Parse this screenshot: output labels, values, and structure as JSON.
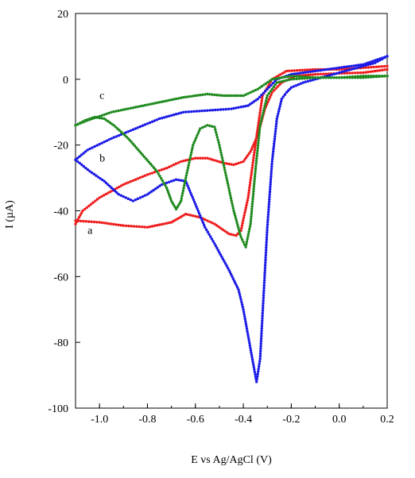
{
  "chart_data": {
    "type": "line",
    "xlabel": "E vs Ag/AgCl (V)",
    "ylabel": "I (µA)",
    "xlim": [
      -1.1,
      0.2
    ],
    "ylim": [
      -100,
      20
    ],
    "xticks": [
      -1.0,
      -0.8,
      -0.6,
      -0.4,
      -0.2,
      0.0,
      0.2
    ],
    "xtick_labels": [
      "-1.0",
      "-0.8",
      "-0.6",
      "-0.4",
      "-0.2",
      "0.0",
      "0.2"
    ],
    "yticks": [
      20,
      0,
      -20,
      -40,
      -60,
      -80,
      -100
    ],
    "ytick_labels": [
      "20",
      "0",
      "-20",
      "-40",
      "-60",
      "-80",
      "-100"
    ],
    "grid": false,
    "series": [
      {
        "name": "a",
        "color": "#ee1c1c",
        "label_at": [
          -1.05,
          -47
        ],
        "loops": [
          [
            [
              -1.1,
              -43
            ],
            [
              -1.0,
              -43.5
            ],
            [
              -0.9,
              -44.5
            ],
            [
              -0.8,
              -45
            ],
            [
              -0.7,
              -43.5
            ],
            [
              -0.64,
              -41
            ],
            [
              -0.58,
              -42
            ],
            [
              -0.52,
              -44
            ],
            [
              -0.46,
              -47
            ],
            [
              -0.43,
              -47.5
            ],
            [
              -0.41,
              -46
            ],
            [
              -0.38,
              -36
            ],
            [
              -0.35,
              -20
            ],
            [
              -0.32,
              -5
            ],
            [
              -0.28,
              0
            ],
            [
              -0.22,
              2.5
            ],
            [
              -0.1,
              3
            ],
            [
              0.0,
              3
            ],
            [
              0.1,
              3.5
            ],
            [
              0.2,
              4
            ]
          ],
          [
            [
              0.2,
              3
            ],
            [
              0.1,
              2
            ],
            [
              0.0,
              1.8
            ],
            [
              -0.1,
              1.5
            ],
            [
              -0.18,
              1
            ],
            [
              -0.24,
              -1
            ],
            [
              -0.28,
              -4
            ],
            [
              -0.31,
              -9
            ],
            [
              -0.34,
              -17
            ],
            [
              -0.37,
              -22
            ],
            [
              -0.4,
              -25
            ],
            [
              -0.44,
              -26
            ],
            [
              -0.48,
              -25.5
            ],
            [
              -0.55,
              -24
            ],
            [
              -0.6,
              -24
            ],
            [
              -0.66,
              -25
            ],
            [
              -0.72,
              -27
            ],
            [
              -0.8,
              -29
            ],
            [
              -0.9,
              -32
            ],
            [
              -1.0,
              -36
            ],
            [
              -1.07,
              -40
            ],
            [
              -1.1,
              -44
            ]
          ]
        ]
      },
      {
        "name": "b",
        "color": "#1a1ae6",
        "label_at": [
          -1.0,
          -25
        ],
        "loops": [
          [
            [
              -1.1,
              -24.5
            ],
            [
              -1.04,
              -28
            ],
            [
              -0.98,
              -31
            ],
            [
              -0.92,
              -35
            ],
            [
              -0.86,
              -37
            ],
            [
              -0.8,
              -35
            ],
            [
              -0.74,
              -32
            ],
            [
              -0.68,
              -30.5
            ],
            [
              -0.64,
              -31
            ],
            [
              -0.6,
              -38
            ],
            [
              -0.56,
              -45
            ],
            [
              -0.52,
              -50
            ],
            [
              -0.46,
              -58
            ],
            [
              -0.42,
              -64
            ],
            [
              -0.4,
              -70
            ],
            [
              -0.38,
              -78
            ],
            [
              -0.36,
              -86
            ],
            [
              -0.345,
              -92
            ],
            [
              -0.33,
              -85
            ],
            [
              -0.315,
              -65
            ],
            [
              -0.3,
              -45
            ],
            [
              -0.28,
              -25
            ],
            [
              -0.26,
              -12
            ],
            [
              -0.24,
              -6
            ],
            [
              -0.22,
              -4
            ],
            [
              -0.2,
              -2.5
            ],
            [
              -0.15,
              -1
            ],
            [
              -0.05,
              1
            ],
            [
              0.05,
              3
            ],
            [
              0.15,
              5
            ],
            [
              0.2,
              7
            ]
          ],
          [
            [
              0.2,
              7
            ],
            [
              0.1,
              4.5
            ],
            [
              0.0,
              3.5
            ],
            [
              -0.1,
              2.5
            ],
            [
              -0.2,
              1.5
            ],
            [
              -0.26,
              0
            ],
            [
              -0.3,
              -3
            ],
            [
              -0.34,
              -6
            ],
            [
              -0.38,
              -8
            ],
            [
              -0.45,
              -9
            ],
            [
              -0.55,
              -9.5
            ],
            [
              -0.65,
              -10
            ],
            [
              -0.75,
              -12
            ],
            [
              -0.85,
              -15
            ],
            [
              -0.95,
              -18
            ],
            [
              -1.05,
              -21.5
            ],
            [
              -1.1,
              -24.5
            ]
          ]
        ]
      },
      {
        "name": "c",
        "color": "#1f8a1f",
        "label_at": [
          -1.0,
          -6
        ],
        "loops": [
          [
            [
              -1.1,
              -14
            ],
            [
              -1.06,
              -12.5
            ],
            [
              -1.02,
              -11.5
            ],
            [
              -0.98,
              -12
            ],
            [
              -0.94,
              -14
            ],
            [
              -0.88,
              -18
            ],
            [
              -0.82,
              -23
            ],
            [
              -0.76,
              -28
            ],
            [
              -0.72,
              -33
            ],
            [
              -0.7,
              -37
            ],
            [
              -0.68,
              -39.5
            ],
            [
              -0.66,
              -37
            ],
            [
              -0.64,
              -30
            ],
            [
              -0.61,
              -20
            ],
            [
              -0.58,
              -15
            ],
            [
              -0.55,
              -14
            ],
            [
              -0.52,
              -14.5
            ],
            [
              -0.5,
              -20
            ],
            [
              -0.47,
              -30
            ],
            [
              -0.44,
              -40
            ],
            [
              -0.41,
              -48
            ],
            [
              -0.39,
              -51
            ],
            [
              -0.37,
              -44
            ],
            [
              -0.35,
              -28
            ],
            [
              -0.33,
              -14
            ],
            [
              -0.3,
              -5
            ],
            [
              -0.26,
              -1
            ],
            [
              -0.2,
              0
            ],
            [
              -0.1,
              0.5
            ],
            [
              0.0,
              0.5
            ],
            [
              0.1,
              1
            ],
            [
              0.2,
              1
            ]
          ],
          [
            [
              0.2,
              1
            ],
            [
              0.1,
              0.5
            ],
            [
              0.0,
              0.5
            ],
            [
              -0.1,
              0.5
            ],
            [
              -0.2,
              1
            ],
            [
              -0.28,
              0
            ],
            [
              -0.34,
              -3
            ],
            [
              -0.4,
              -5
            ],
            [
              -0.48,
              -5
            ],
            [
              -0.55,
              -4.5
            ],
            [
              -0.65,
              -5.5
            ],
            [
              -0.75,
              -7
            ],
            [
              -0.85,
              -8.5
            ],
            [
              -0.95,
              -10
            ],
            [
              -1.05,
              -12.5
            ],
            [
              -1.1,
              -14
            ]
          ]
        ]
      }
    ]
  }
}
